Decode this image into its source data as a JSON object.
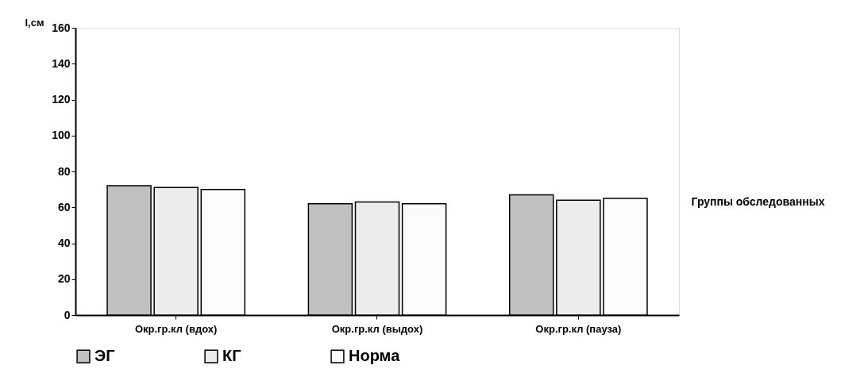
{
  "chart_data": {
    "type": "bar",
    "xlabel": "Группы обследованных",
    "ylabel": "l,см",
    "categories": [
      "Окр.гр.кл (вдох)",
      "Окр.гр.кл (выдох)",
      "Окр.гр.кл (пауза)"
    ],
    "series": [
      {
        "name": "ЭГ",
        "color": "#c0c0c0",
        "values": [
          72,
          62,
          67
        ]
      },
      {
        "name": "КГ",
        "color": "#ececec",
        "values": [
          71,
          63,
          64
        ]
      },
      {
        "name": "Норма",
        "color": "#fbfbfb",
        "values": [
          70,
          62,
          65
        ]
      }
    ],
    "ylim": [
      0,
      160
    ],
    "yticks": [
      0,
      20,
      40,
      60,
      80,
      100,
      120,
      140,
      160
    ],
    "grid": false,
    "legend": "bottom"
  }
}
